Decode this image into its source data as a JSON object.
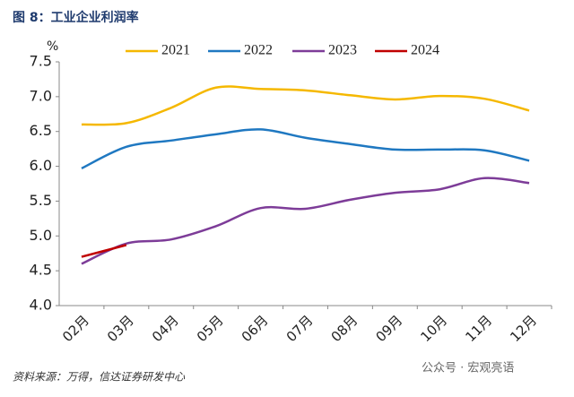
{
  "chart_data": {
    "type": "line",
    "title": "图 8：工业企业利润率",
    "y_unit": "%",
    "categories": [
      "02月",
      "03月",
      "04月",
      "05月",
      "06月",
      "07月",
      "08月",
      "09月",
      "10月",
      "11月",
      "12月"
    ],
    "series": [
      {
        "name": "2021",
        "color": "#f5b800",
        "values": [
          6.6,
          6.62,
          6.84,
          7.13,
          7.11,
          7.09,
          7.02,
          6.96,
          7.01,
          6.97,
          6.8
        ]
      },
      {
        "name": "2022",
        "color": "#1f78c1",
        "values": [
          5.97,
          6.28,
          6.37,
          6.46,
          6.53,
          6.41,
          6.32,
          6.24,
          6.24,
          6.23,
          6.08
        ]
      },
      {
        "name": "2023",
        "color": "#7d3c98",
        "values": [
          4.6,
          4.89,
          4.95,
          5.14,
          5.4,
          5.39,
          5.52,
          5.62,
          5.67,
          5.83,
          5.76
        ]
      },
      {
        "name": "2024",
        "color": "#c00000",
        "values": [
          4.7,
          4.87,
          null,
          null,
          null,
          null,
          null,
          null,
          null,
          null,
          null
        ]
      }
    ],
    "ylim": [
      4.0,
      7.5
    ],
    "yticks": [
      {
        "value": 4.0,
        "label": "4.0"
      },
      {
        "value": 4.5,
        "label": "4.5"
      },
      {
        "value": 5.0,
        "label": "5.0"
      },
      {
        "value": 5.5,
        "label": "5.5"
      },
      {
        "value": 6.0,
        "label": "6.0"
      },
      {
        "value": 6.5,
        "label": "6.5"
      },
      {
        "value": 7.0,
        "label": "7.0"
      },
      {
        "value": 7.5,
        "label": "7.5"
      }
    ],
    "legend": "top",
    "source": "资料来源：万得，信达证券研发中心",
    "watermark": "公众号 · 宏观亮语"
  }
}
